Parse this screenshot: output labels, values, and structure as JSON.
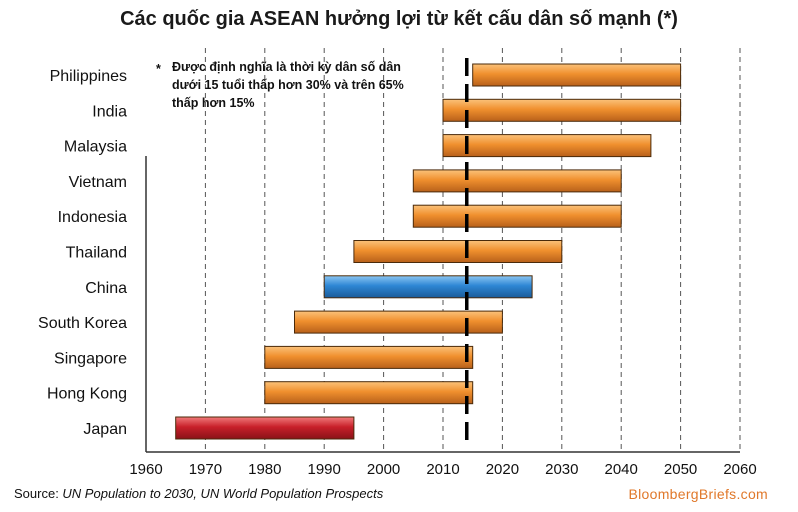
{
  "title": "Các quốc gia ASEAN hưởng lợi từ kết cấu dân số mạnh (*)",
  "note": {
    "marker": "*",
    "text": "Được định nghĩa là thời kỳ dân số dân dưới 15 tuổi thấp hơn 30% và trên 65% thấp hơn 15%"
  },
  "footer": {
    "source_label": "Source: ",
    "source_text": "UN Population to 2030, UN World Population Prospects",
    "brand": "BloombergBriefs.com"
  },
  "colors": {
    "orange": "#f0902e",
    "blue": "#2e86d4",
    "red": "#c8202a",
    "marker": "#000000",
    "grid": "#555555"
  },
  "chart_data": {
    "type": "bar",
    "orientation": "horizontal-range",
    "xlim": [
      1960,
      2060
    ],
    "xticks": [
      1960,
      1970,
      1980,
      1990,
      2000,
      2010,
      2020,
      2030,
      2040,
      2050,
      2060
    ],
    "grid": "vertical dashed at each decade",
    "reference_line": {
      "x": 2014,
      "style": "black dashed"
    },
    "categories": [
      "Philippines",
      "India",
      "Malaysia",
      "Vietnam",
      "Indonesia",
      "Thailand",
      "China",
      "South Korea",
      "Singapore",
      "Hong Kong",
      "Japan"
    ],
    "series": [
      {
        "start": [
          2015,
          2010,
          2010,
          2005,
          2005,
          1995,
          1990,
          1985,
          1980,
          1980,
          1965
        ],
        "end": [
          2050,
          2050,
          2045,
          2040,
          2040,
          2030,
          2025,
          2020,
          2015,
          2015,
          1995
        ],
        "color_key": [
          "orange",
          "orange",
          "orange",
          "orange",
          "orange",
          "orange",
          "blue",
          "orange",
          "orange",
          "orange",
          "red"
        ]
      }
    ]
  }
}
